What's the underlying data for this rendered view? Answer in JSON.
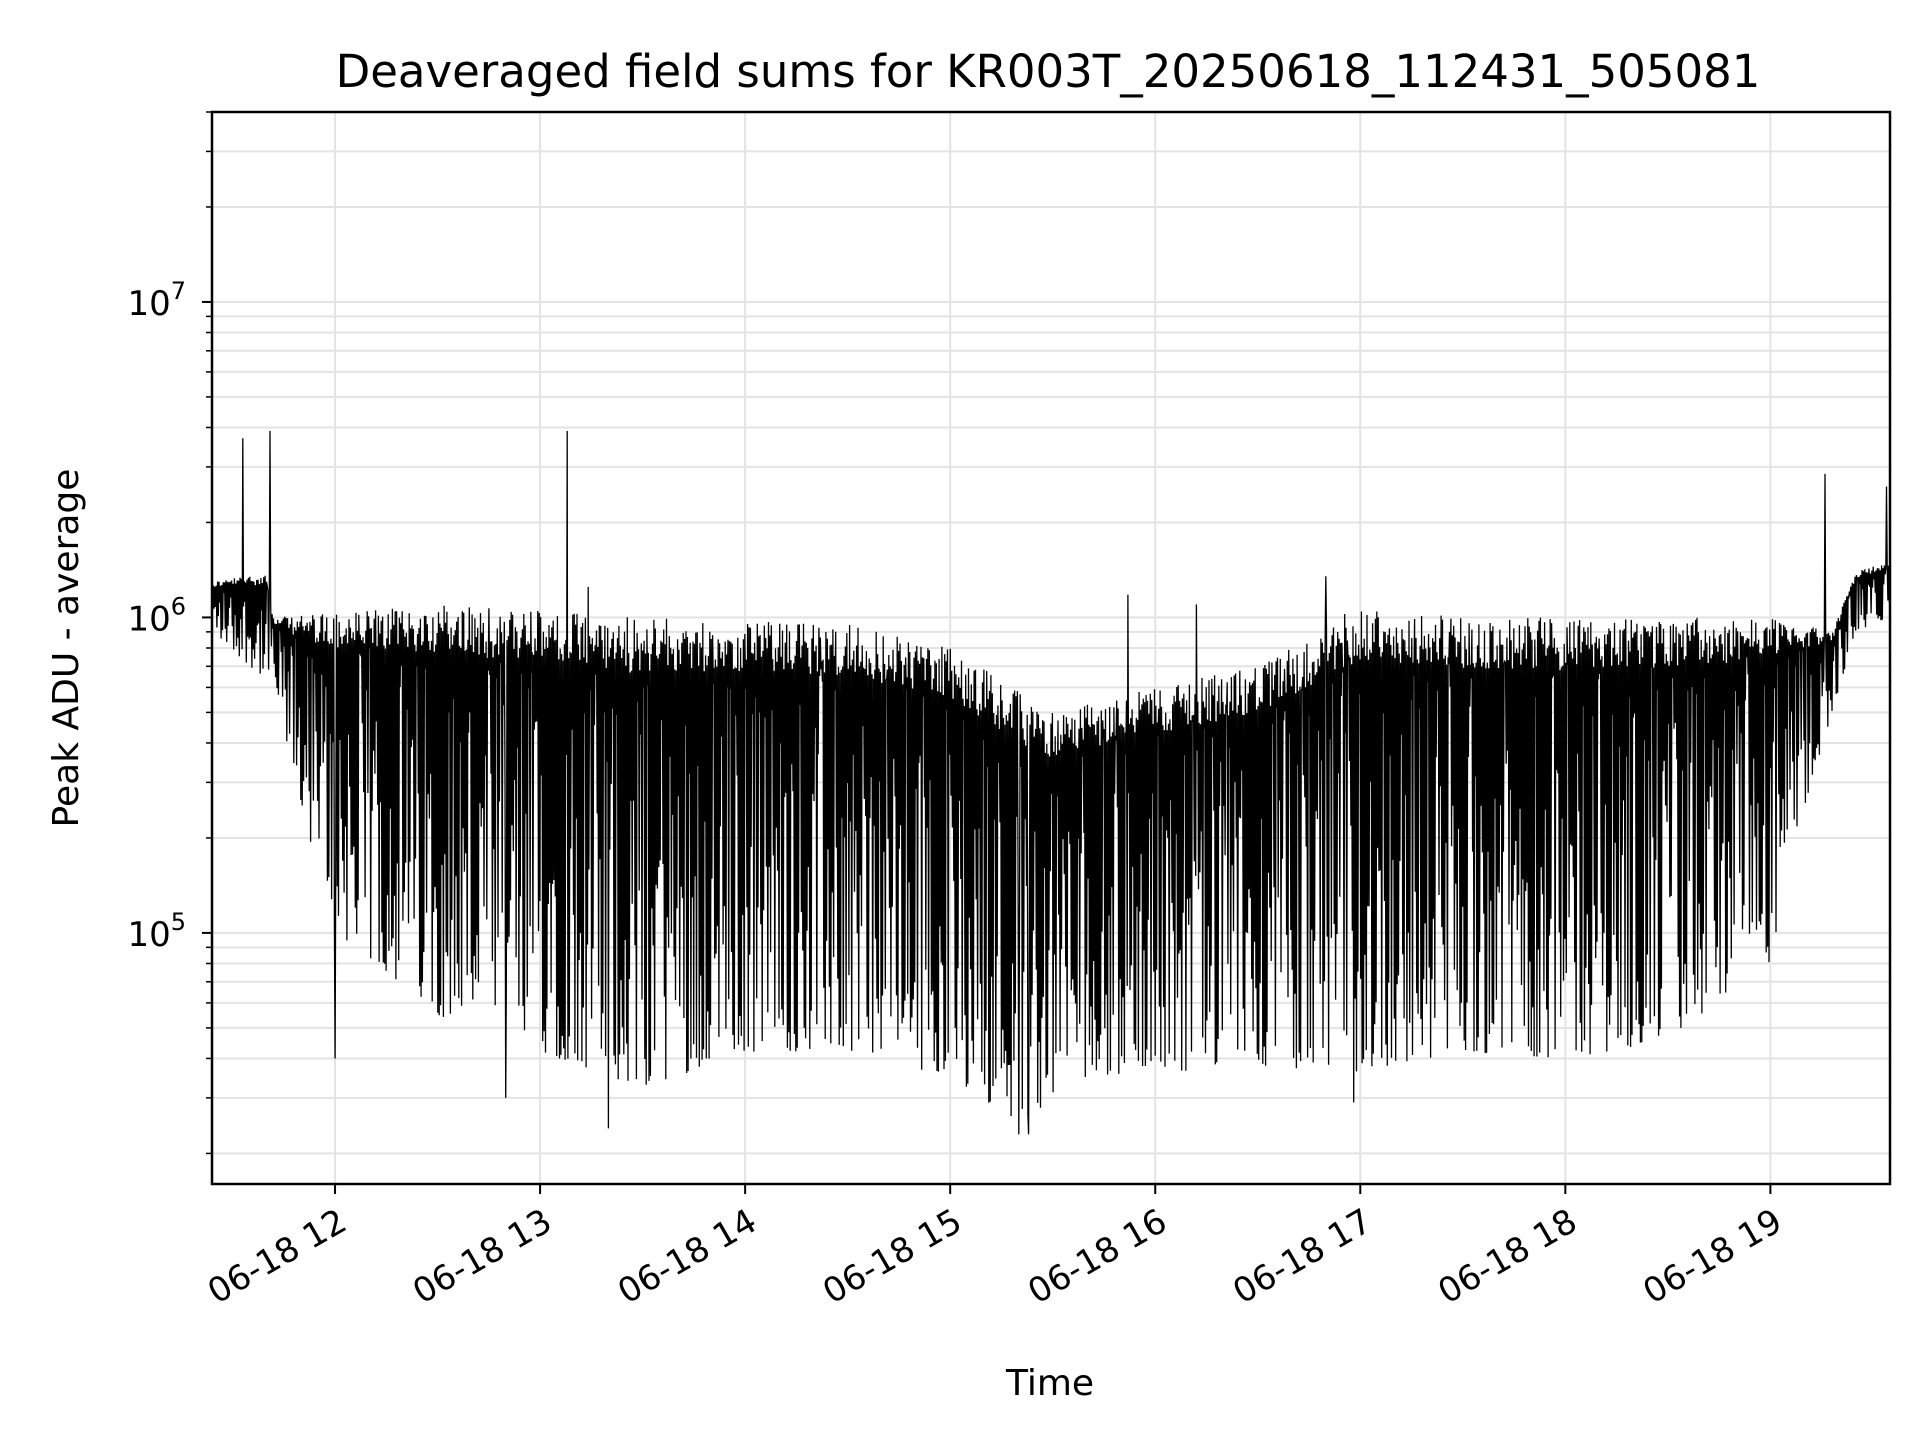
{
  "chart_data": {
    "type": "line",
    "title": "Deaveraged field sums for KR003T_20250618_112431_505081",
    "xlabel": "Time",
    "ylabel": "Peak ADU - average",
    "y_scale": "log",
    "xlim": [
      "2025-06-18 11:24",
      "2025-06-18 19:35"
    ],
    "ylim": [
      16000,
      40000000
    ],
    "grid": true,
    "line_color": "#000000",
    "x_ticks": [
      {
        "value": "2025-06-18 12:00",
        "label": "06-18 12"
      },
      {
        "value": "2025-06-18 13:00",
        "label": "06-18 13"
      },
      {
        "value": "2025-06-18 14:00",
        "label": "06-18 14"
      },
      {
        "value": "2025-06-18 15:00",
        "label": "06-18 15"
      },
      {
        "value": "2025-06-18 16:00",
        "label": "06-18 16"
      },
      {
        "value": "2025-06-18 17:00",
        "label": "06-18 17"
      },
      {
        "value": "2025-06-18 18:00",
        "label": "06-18 18"
      },
      {
        "value": "2025-06-18 19:00",
        "label": "06-18 19"
      }
    ],
    "y_ticks": [
      {
        "value": 100000,
        "base": "10",
        "exp": "5"
      },
      {
        "value": 1000000,
        "base": "10",
        "exp": "6"
      },
      {
        "value": 10000000,
        "base": "10",
        "exp": "7"
      }
    ],
    "series_profile": {
      "upper_envelope": [
        [
          "2025-06-18 11:24",
          1300000
        ],
        [
          "2025-06-18 11:40",
          1400000
        ],
        [
          "2025-06-18 11:42",
          1000000
        ],
        [
          "2025-06-18 12:30",
          1100000
        ],
        [
          "2025-06-18 13:30",
          1000000
        ],
        [
          "2025-06-18 14:30",
          950000
        ],
        [
          "2025-06-18 15:00",
          800000
        ],
        [
          "2025-06-18 15:30",
          500000
        ],
        [
          "2025-06-18 16:00",
          600000
        ],
        [
          "2025-06-18 16:30",
          700000
        ],
        [
          "2025-06-18 17:00",
          1100000
        ],
        [
          "2025-06-18 17:30",
          1000000
        ],
        [
          "2025-06-18 18:00",
          1000000
        ],
        [
          "2025-06-18 19:00",
          1000000
        ],
        [
          "2025-06-18 19:18",
          900000
        ],
        [
          "2025-06-18 19:25",
          1400000
        ],
        [
          "2025-06-18 19:35",
          1500000
        ]
      ],
      "lower_envelope": [
        [
          "2025-06-18 11:24",
          900000
        ],
        [
          "2025-06-18 11:42",
          600000
        ],
        [
          "2025-06-18 11:50",
          250000
        ],
        [
          "2025-06-18 12:00",
          100000
        ],
        [
          "2025-06-18 12:30",
          55000
        ],
        [
          "2025-06-18 13:00",
          42000
        ],
        [
          "2025-06-18 13:30",
          32000
        ],
        [
          "2025-06-18 14:00",
          42000
        ],
        [
          "2025-06-18 14:30",
          42000
        ],
        [
          "2025-06-18 15:00",
          35000
        ],
        [
          "2025-06-18 15:20",
          25000
        ],
        [
          "2025-06-18 15:40",
          35000
        ],
        [
          "2025-06-18 16:00",
          36000
        ],
        [
          "2025-06-18 16:30",
          38000
        ],
        [
          "2025-06-18 17:00",
          36000
        ],
        [
          "2025-06-18 17:30",
          42000
        ],
        [
          "2025-06-18 18:00",
          40000
        ],
        [
          "2025-06-18 18:30",
          45000
        ],
        [
          "2025-06-18 19:00",
          80000
        ],
        [
          "2025-06-18 19:10",
          250000
        ],
        [
          "2025-06-18 19:18",
          500000
        ],
        [
          "2025-06-18 19:25",
          900000
        ],
        [
          "2025-06-18 19:35",
          1000000
        ]
      ],
      "spikes": [
        [
          "2025-06-18 11:33",
          3700000
        ],
        [
          "2025-06-18 11:41",
          3900000
        ],
        [
          "2025-06-18 13:08",
          3900000
        ],
        [
          "2025-06-18 13:14",
          1250000
        ],
        [
          "2025-06-18 16:50",
          1350000
        ],
        [
          "2025-06-18 19:16",
          2850000
        ],
        [
          "2025-06-18 19:34",
          2600000
        ],
        [
          "2025-06-18 15:52",
          1180000
        ],
        [
          "2025-06-18 16:12",
          1100000
        ]
      ],
      "dips": [
        [
          "2025-06-18 13:20",
          24000
        ],
        [
          "2025-06-18 15:20",
          23000
        ],
        [
          "2025-06-18 15:23",
          23000
        ],
        [
          "2025-06-18 12:00",
          40000
        ],
        [
          "2025-06-18 16:58",
          29000
        ],
        [
          "2025-06-18 12:50",
          30000
        ]
      ]
    }
  }
}
